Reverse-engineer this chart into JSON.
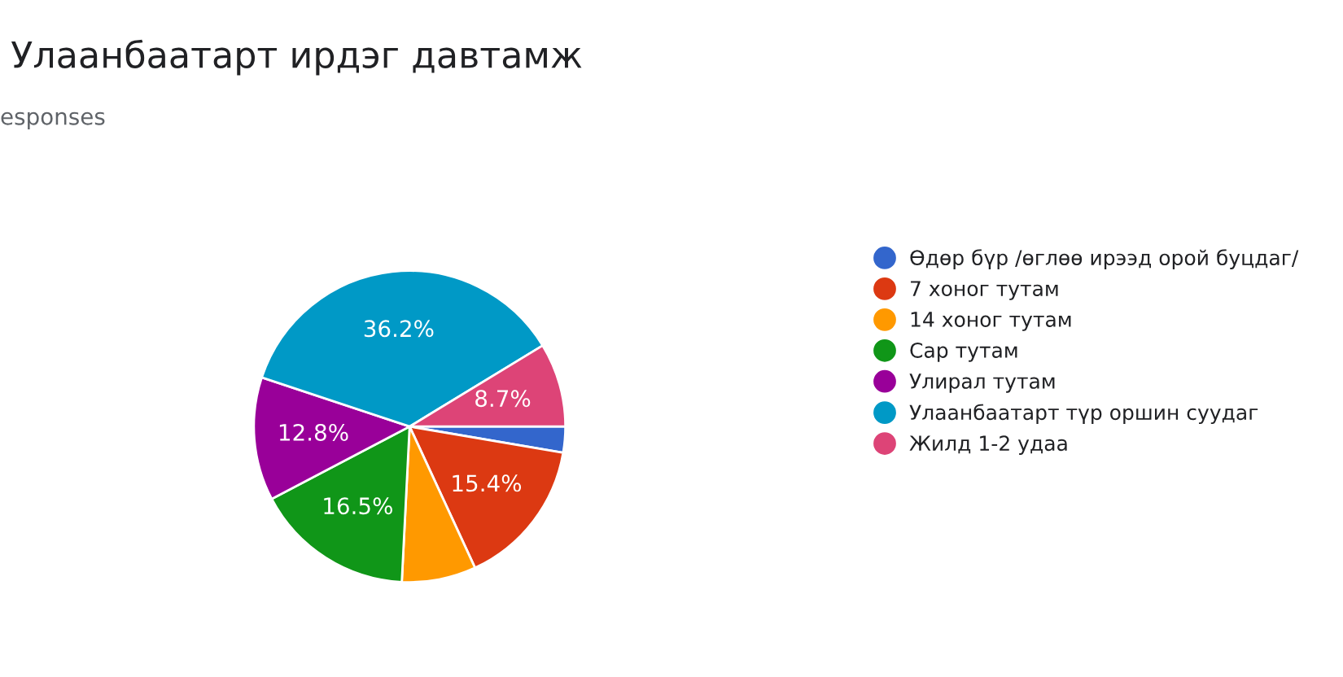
{
  "chart_data": {
    "type": "pie",
    "title": "Улаанбаатарт ирдэг давтамж",
    "subtitle": "esponses",
    "categories": [
      "Өдөр бүр /өглөө ирээд орой буцдаг/",
      "7 хоног тутам",
      "14 хоног тутам",
      "Сар тутам",
      "Улирал тутам",
      "Улаанбаатарт түр оршин суудаг",
      "Жилд 1-2 удаа"
    ],
    "values": [
      2.7,
      15.4,
      7.7,
      16.5,
      12.8,
      36.2,
      8.7
    ],
    "value_labels": [
      null,
      "15.4%",
      null,
      "16.5%",
      "12.8%",
      "36.2%",
      "8.7%"
    ],
    "colors": [
      "#3366cc",
      "#dc3912",
      "#ff9900",
      "#109618",
      "#990099",
      "#0099c6",
      "#dd4477"
    ],
    "legend": "right"
  }
}
